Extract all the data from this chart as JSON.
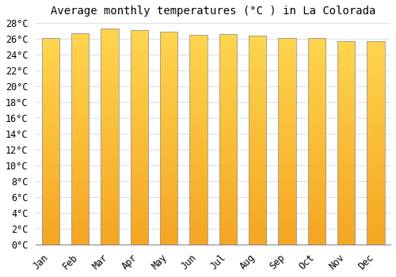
{
  "title": "Average monthly temperatures (Â°C ) in La Colorada",
  "title_text": "Average monthly temperatures (°C ) in La Colorada",
  "months": [
    "Jan",
    "Feb",
    "Mar",
    "Apr",
    "May",
    "Jun",
    "Jul",
    "Aug",
    "Sep",
    "Oct",
    "Nov",
    "Dec"
  ],
  "values": [
    26.1,
    26.7,
    27.3,
    27.1,
    26.9,
    26.5,
    26.6,
    26.4,
    26.1,
    26.1,
    25.7,
    25.7
  ],
  "bar_color_bottom": "#F5A623",
  "bar_color_top": "#FFD54F",
  "bar_edge_color": "#999999",
  "background_color": "#ffffff",
  "grid_color": "#e0e0e0",
  "ylim_max": 28,
  "ytick_step": 2,
  "title_fontsize": 10,
  "tick_fontsize": 8.5,
  "bar_width": 0.6
}
